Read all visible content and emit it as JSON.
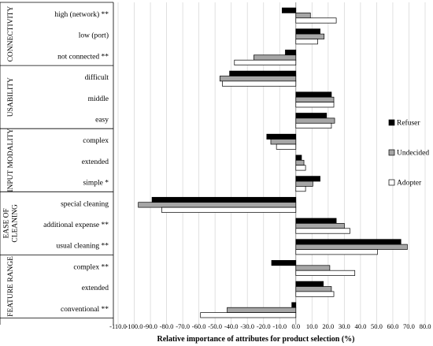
{
  "chart_data": {
    "type": "bar",
    "orientation": "horizontal",
    "xlabel": "Relative importance of attributes for product selection (%)",
    "xlim": [
      -110,
      80
    ],
    "xticks": [
      "-110.0",
      "-100.0",
      "-90.0",
      "-80.0",
      "-70.0",
      "-60.0",
      "-50.0",
      "-40.0",
      "-30.0",
      "-20.0",
      "-10.0",
      "0.0",
      "10.0",
      "20.0",
      "30.0",
      "40.0",
      "50.0",
      "60.0",
      "70.0",
      "80.0"
    ],
    "grid": "vertical",
    "legend_position": "right",
    "groups": [
      {
        "name": "CONNECTIVITY",
        "categories": [
          "high (network) **",
          "low (port)",
          "not connected **"
        ]
      },
      {
        "name": "USABILITY",
        "categories": [
          "difficult",
          "middle",
          "easy"
        ]
      },
      {
        "name": "INPUT MODALITY",
        "categories": [
          "complex",
          "extended",
          "simple *"
        ]
      },
      {
        "name": "EASE OF CLEANING",
        "categories": [
          "special cleaning",
          "additional expense **",
          "usual cleaning **"
        ]
      },
      {
        "name": "FEATURE RANGE",
        "categories": [
          "complex **",
          "extended",
          "conventional **"
        ]
      }
    ],
    "series": [
      {
        "name": "Refuser",
        "color": "#000000",
        "values": [
          -8.5,
          15,
          -6.5,
          -41,
          22,
          19,
          -18,
          3.5,
          15,
          -89,
          25,
          65,
          -15,
          17,
          -2.5
        ]
      },
      {
        "name": "Undecided",
        "color": "#a6a6a6",
        "values": [
          9,
          17.5,
          -26,
          -47,
          23.5,
          24,
          -15.5,
          5,
          10.5,
          -97.5,
          30,
          69,
          21,
          22,
          -42.5
        ]
      },
      {
        "name": "Adopter",
        "color": "#ffffff",
        "values": [
          25,
          13.5,
          -38,
          -45.5,
          23.5,
          22,
          -12,
          6,
          6,
          -83,
          33.5,
          50.5,
          36.5,
          23.5,
          -59
        ]
      }
    ]
  }
}
